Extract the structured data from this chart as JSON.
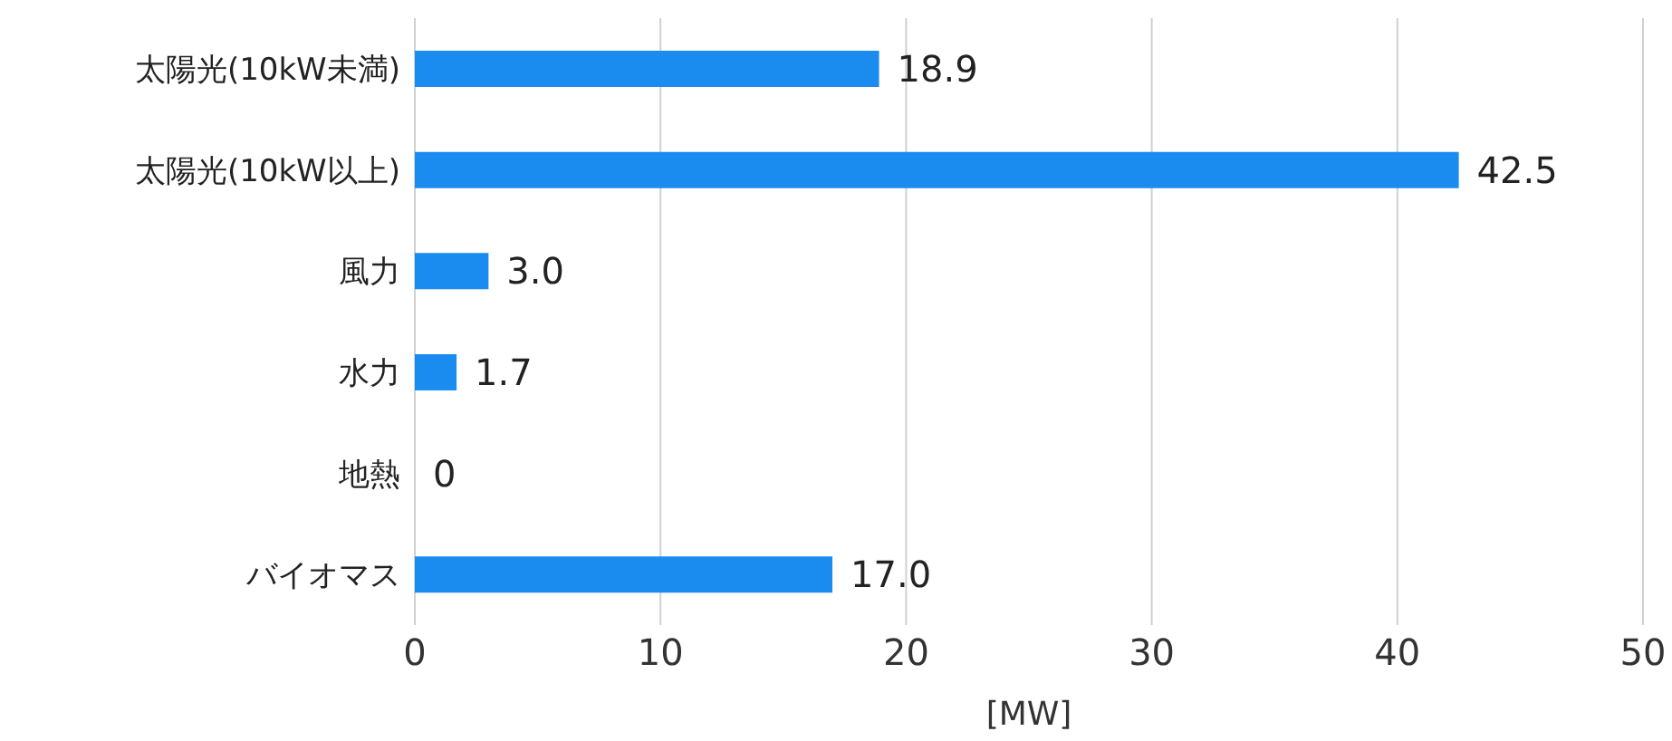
{
  "chart_data": {
    "type": "bar",
    "orientation": "horizontal",
    "categories": [
      "太陽光(10kW未満)",
      "太陽光(10kW以上)",
      "風力",
      "水力",
      "地熱",
      "バイオマス"
    ],
    "values": [
      18.9,
      42.5,
      3.0,
      1.7,
      0,
      17.0
    ],
    "value_labels": [
      "18.9",
      "42.5",
      "3.0",
      "1.7",
      "0",
      "17.0"
    ],
    "color": "#1a8cf0",
    "xlim": [
      0,
      50
    ],
    "xticks": [
      0,
      10,
      20,
      30,
      40,
      50
    ],
    "xlabel": "[MW]",
    "grid": "x",
    "legend": false
  }
}
